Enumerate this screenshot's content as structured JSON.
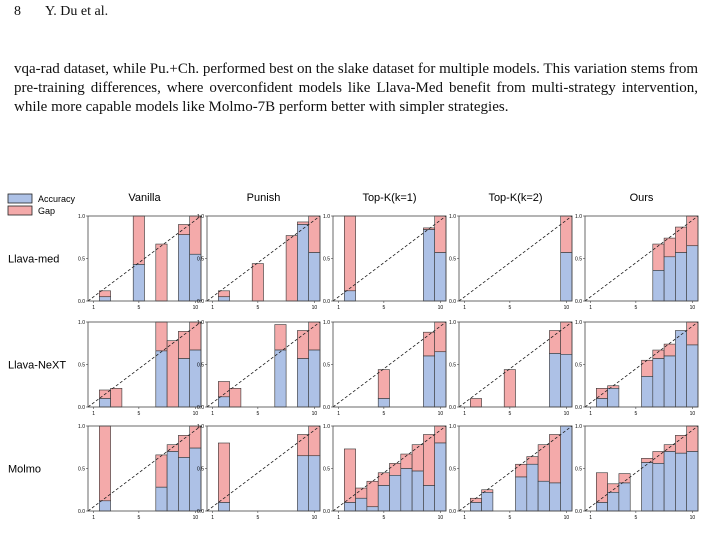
{
  "header": {
    "page_number": "8",
    "running_head": "Y. Du et al."
  },
  "body": {
    "paragraph": "vqa-rad dataset, while Pu.+Ch. performed best on the slake dataset for multiple models. This variation stems from pre-training differences, where overconfident models like Llava-Med benefit from multi-strategy intervention, while more capable models like Molmo-7B perform better with simpler strategies."
  },
  "figure": {
    "legend": {
      "accuracy_label": "Accuracy",
      "gap_label": "Gap",
      "accuracy_color": "#adc1e6",
      "gap_color": "#f4aaaa"
    },
    "column_titles": [
      "Vanilla",
      "Punish",
      "Top-K(k=1)",
      "Top-K(k=2)",
      "Ours"
    ],
    "row_labels": [
      "Llava-med",
      "Llava-NeXT",
      "Molmo"
    ],
    "y_tick_labels": [
      "0.0",
      "0.5",
      "1.0"
    ],
    "x_tick_labels": [
      "1",
      "5",
      "10"
    ]
  },
  "chart_data": {
    "type": "bar",
    "description_of_panels": "reliability diagrams, 3 rows x 5 columns, 10 confidence bins each",
    "x": [
      1,
      2,
      3,
      4,
      5,
      6,
      7,
      8,
      9,
      10
    ],
    "ylim": [
      0,
      1
    ],
    "series_names": [
      "Accuracy",
      "Gap"
    ],
    "panels": [
      [
        {
          "acc": [
            0,
            0.05,
            0,
            0,
            0.43,
            0,
            0,
            0,
            0.78,
            0.55
          ],
          "top": [
            0,
            0.12,
            0,
            0,
            1.0,
            0,
            0.67,
            0,
            0.9,
            1.0
          ]
        },
        {
          "acc": [
            0,
            0.05,
            0,
            0,
            0,
            0,
            0,
            0,
            0.9,
            0.57
          ],
          "top": [
            0,
            0.12,
            0,
            0,
            0.44,
            0,
            0,
            0.77,
            0.93,
            1.0
          ]
        },
        {
          "acc": [
            0,
            0.12,
            0,
            0,
            0,
            0,
            0,
            0,
            0.84,
            0.57
          ],
          "top": [
            0,
            1.0,
            0,
            0,
            0,
            0,
            0,
            0,
            0.86,
            1.0
          ]
        },
        {
          "acc": [
            0,
            0,
            0,
            0,
            0,
            0,
            0,
            0,
            0,
            0.57
          ],
          "top": [
            0,
            0,
            0,
            0,
            0,
            0,
            0,
            0,
            0,
            1.0
          ]
        },
        {
          "acc": [
            0,
            0,
            0,
            0,
            0,
            0,
            0.36,
            0.52,
            0.57,
            0.65
          ],
          "top": [
            0,
            0,
            0,
            0,
            0,
            0,
            0.67,
            0.74,
            0.87,
            1.0
          ]
        }
      ],
      [
        {
          "acc": [
            0,
            0.1,
            0,
            0,
            0,
            0,
            0.66,
            0,
            0.57,
            0.67
          ],
          "top": [
            0,
            0.2,
            0.22,
            0,
            0,
            0,
            1.0,
            0.78,
            0.89,
            1.0
          ]
        },
        {
          "acc": [
            0,
            0.12,
            0,
            0,
            0,
            0,
            0.67,
            0,
            0.57,
            0.67
          ],
          "top": [
            0,
            0.3,
            0.22,
            0,
            0,
            0,
            0.97,
            0,
            0.9,
            1.0
          ]
        },
        {
          "acc": [
            0,
            0,
            0,
            0,
            0.1,
            0,
            0,
            0,
            0.6,
            0.65
          ],
          "top": [
            0,
            0,
            0,
            0,
            0.44,
            0,
            0,
            0,
            0.88,
            1.0
          ]
        },
        {
          "acc": [
            0,
            0,
            0,
            0,
            0,
            0,
            0,
            0,
            0.63,
            0.62
          ],
          "top": [
            0,
            0.1,
            0,
            0,
            0.44,
            0,
            0,
            0,
            0.9,
            1.0
          ]
        },
        {
          "acc": [
            0,
            0.1,
            0.22,
            0,
            0,
            0.36,
            0.57,
            0.6,
            0.9,
            0.73
          ],
          "top": [
            0,
            0.22,
            0.25,
            0,
            0,
            0.55,
            0.67,
            0.74,
            0.9,
            1.0
          ]
        }
      ],
      [
        {
          "acc": [
            0,
            0.12,
            0,
            0,
            0,
            0,
            0.28,
            0.7,
            0.63,
            0.74
          ],
          "top": [
            0,
            1.0,
            0,
            0,
            0,
            0,
            0.66,
            0.78,
            0.89,
            1.0
          ]
        },
        {
          "acc": [
            0,
            0.1,
            0,
            0,
            0,
            0,
            0,
            0,
            0.65,
            0.65
          ],
          "top": [
            0,
            0.8,
            0,
            0,
            0,
            0,
            0,
            0,
            0.9,
            1.0
          ]
        },
        {
          "acc": [
            0,
            0.1,
            0.15,
            0.05,
            0.3,
            0.42,
            0.5,
            0.47,
            0.3,
            0.8
          ],
          "top": [
            0,
            0.73,
            0.27,
            0.35,
            0.45,
            0.56,
            0.67,
            0.78,
            0.9,
            1.0
          ]
        },
        {
          "acc": [
            0,
            0.1,
            0.22,
            0,
            0,
            0.4,
            0.55,
            0.35,
            0.33,
            1.0
          ],
          "top": [
            0,
            0.15,
            0.25,
            0,
            0,
            0.55,
            0.64,
            0.78,
            0.9,
            1.0
          ]
        },
        {
          "acc": [
            0,
            0.1,
            0.22,
            0.33,
            0,
            0.57,
            0.56,
            0.7,
            0.68,
            0.7
          ],
          "top": [
            0,
            0.45,
            0.32,
            0.44,
            0,
            0.62,
            0.7,
            0.78,
            0.89,
            1.0
          ]
        }
      ]
    ]
  }
}
